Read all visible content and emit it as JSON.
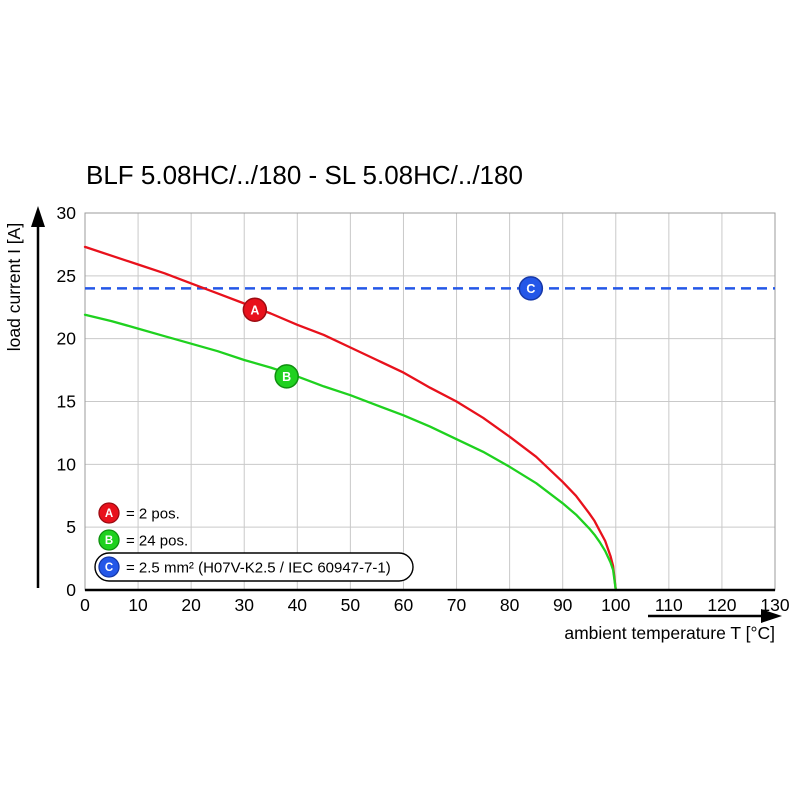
{
  "chart_data": {
    "type": "line",
    "title": "BLF 5.08HC/../180 - SL 5.08HC/../180",
    "xlabel": "ambient temperature T [°C]",
    "ylabel": "load current I [A]",
    "xlim": [
      0,
      130
    ],
    "ylim": [
      0,
      30
    ],
    "xticks": [
      0,
      10,
      20,
      30,
      40,
      50,
      60,
      70,
      80,
      90,
      100,
      110,
      120,
      130
    ],
    "yticks": [
      0,
      5,
      10,
      15,
      20,
      25,
      30
    ],
    "grid": true,
    "legend_position": "lower left",
    "colors": {
      "grid": "#c9c9c9",
      "plot_border": "#9b9b9b",
      "axis": "#000000"
    },
    "series": [
      {
        "name": "A",
        "label": "= 2 pos.",
        "type": "curve",
        "color": "#e8111c",
        "edge": "#9c0b12",
        "marker": {
          "x": 32,
          "y": 22.3
        },
        "points": [
          [
            0,
            27.3
          ],
          [
            5,
            26.6
          ],
          [
            10,
            25.9
          ],
          [
            15,
            25.2
          ],
          [
            20,
            24.4
          ],
          [
            25,
            23.6
          ],
          [
            30,
            22.8
          ],
          [
            35,
            22.0
          ],
          [
            40,
            21.1
          ],
          [
            45,
            20.3
          ],
          [
            50,
            19.3
          ],
          [
            55,
            18.3
          ],
          [
            60,
            17.3
          ],
          [
            65,
            16.1
          ],
          [
            70,
            15.0
          ],
          [
            75,
            13.7
          ],
          [
            80,
            12.2
          ],
          [
            85,
            10.6
          ],
          [
            90,
            8.6
          ],
          [
            92.5,
            7.5
          ],
          [
            95,
            6.1
          ],
          [
            96,
            5.5
          ],
          [
            97,
            4.7
          ],
          [
            98,
            3.9
          ],
          [
            99,
            2.7
          ],
          [
            99.5,
            1.9
          ],
          [
            100,
            0
          ]
        ]
      },
      {
        "name": "B",
        "label": "= 24 pos.",
        "type": "curve",
        "color": "#1fd11f",
        "edge": "#0f8f0f",
        "marker": {
          "x": 38,
          "y": 17
        },
        "points": [
          [
            0,
            21.9
          ],
          [
            5,
            21.4
          ],
          [
            10,
            20.8
          ],
          [
            15,
            20.2
          ],
          [
            20,
            19.6
          ],
          [
            25,
            19.0
          ],
          [
            30,
            18.3
          ],
          [
            35,
            17.7
          ],
          [
            40,
            17.0
          ],
          [
            45,
            16.2
          ],
          [
            50,
            15.5
          ],
          [
            55,
            14.7
          ],
          [
            60,
            13.9
          ],
          [
            65,
            13.0
          ],
          [
            70,
            12.0
          ],
          [
            75,
            11.0
          ],
          [
            80,
            9.8
          ],
          [
            85,
            8.5
          ],
          [
            90,
            6.9
          ],
          [
            92.5,
            6.0
          ],
          [
            95,
            4.9
          ],
          [
            96,
            4.4
          ],
          [
            97,
            3.8
          ],
          [
            98,
            3.1
          ],
          [
            99,
            2.2
          ],
          [
            99.5,
            1.6
          ],
          [
            100,
            0
          ]
        ]
      },
      {
        "name": "C",
        "label": "= 2.5 mm² (H07V-K2.5 / IEC 60947-7-1)",
        "type": "hline",
        "y": 24,
        "dashed": true,
        "boxed_legend": true,
        "color": "#2457e8",
        "edge": "#1638a8",
        "marker": {
          "x": 84,
          "y": 24
        }
      }
    ]
  }
}
